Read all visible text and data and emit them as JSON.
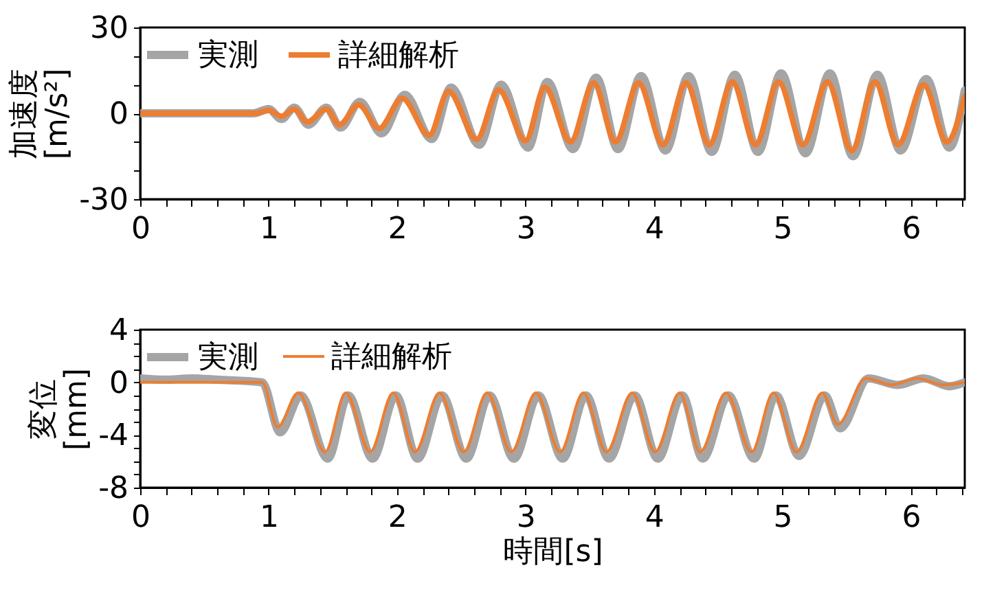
{
  "chart_data": [
    {
      "type": "line",
      "ylabel": "加速度\n[m/s²]",
      "xlim": [
        0,
        6.42
      ],
      "ylim": [
        -30,
        30
      ],
      "xticks": [
        0,
        {
          "value": 0.2,
          "label": null
        },
        {
          "value": 0.4,
          "label": null
        },
        {
          "value": 0.6,
          "label": null
        },
        {
          "value": 0.8,
          "label": null
        },
        1,
        {
          "value": 1.2,
          "label": null
        },
        {
          "value": 1.4,
          "label": null
        },
        {
          "value": 1.6,
          "label": null
        },
        {
          "value": 1.8,
          "label": null
        },
        2,
        {
          "value": 2.2,
          "label": null
        },
        {
          "value": 2.4,
          "label": null
        },
        {
          "value": 2.6,
          "label": null
        },
        {
          "value": 2.8,
          "label": null
        },
        3,
        {
          "value": 3.2,
          "label": null
        },
        {
          "value": 3.4,
          "label": null
        },
        {
          "value": 3.6,
          "label": null
        },
        {
          "value": 3.8,
          "label": null
        },
        4,
        {
          "value": 4.2,
          "label": null
        },
        {
          "value": 4.4,
          "label": null
        },
        {
          "value": 4.6,
          "label": null
        },
        {
          "value": 4.8,
          "label": null
        },
        5,
        {
          "value": 5.2,
          "label": null
        },
        {
          "value": 5.4,
          "label": null
        },
        {
          "value": 5.6,
          "label": null
        },
        {
          "value": 5.8,
          "label": null
        },
        6,
        {
          "value": 6.2,
          "label": null
        },
        {
          "value": 6.4,
          "label": null
        }
      ],
      "yticks": [
        -30,
        {
          "value": -20,
          "label": null
        },
        {
          "value": -10,
          "label": null
        },
        0,
        {
          "value": 10,
          "label": null
        },
        {
          "value": 20,
          "label": null
        },
        30
      ],
      "legend": "top left",
      "grid": false,
      "series": [
        {
          "name": "実測",
          "color": "#a5a5a5",
          "x": [
            0,
            0.88,
            1.0,
            1.1,
            1.2,
            1.31,
            1.45,
            1.56,
            1.71,
            1.88,
            2.06,
            2.27,
            2.42,
            2.64,
            2.81,
            3.02,
            3.17,
            3.37,
            3.55,
            3.72,
            3.9,
            4.09,
            4.27,
            4.45,
            4.63,
            4.81,
            4.99,
            5.18,
            5.37,
            5.55,
            5.74,
            5.92,
            6.12,
            6.3,
            6.42
          ],
          "values": [
            0,
            0,
            1.5,
            -2,
            2,
            -4,
            2,
            -5,
            4,
            -7,
            6.5,
            -9,
            9,
            -11,
            10,
            -12,
            11,
            -12.5,
            12.5,
            -12.5,
            13,
            -13,
            13,
            -13.5,
            13.5,
            -13.5,
            14,
            -14,
            14,
            -15,
            13.5,
            -13,
            12,
            -12,
            8
          ]
        },
        {
          "name": "詳細解析",
          "color": "#ed7d31",
          "x": [
            0,
            0.9,
            1.0,
            1.1,
            1.2,
            1.3,
            1.45,
            1.55,
            1.7,
            1.86,
            2.04,
            2.25,
            2.4,
            2.62,
            2.79,
            3.0,
            3.15,
            3.35,
            3.53,
            3.7,
            3.88,
            4.07,
            4.25,
            4.43,
            4.61,
            4.79,
            4.97,
            5.16,
            5.35,
            5.54,
            5.72,
            5.9,
            6.1,
            6.28,
            6.42
          ],
          "values": [
            0,
            0,
            1,
            -1,
            1.5,
            -3,
            1.5,
            -4,
            3,
            -5.3,
            5.3,
            -7.7,
            7.7,
            -9.1,
            8.2,
            -9.6,
            9.1,
            -10,
            10.6,
            -10,
            10.6,
            -11,
            10.6,
            -11,
            11,
            -11,
            11,
            -11,
            11,
            -13,
            11,
            -11,
            10,
            -10,
            6
          ]
        }
      ]
    },
    {
      "type": "line",
      "ylabel": "変位\n[mm]",
      "xlabel": "時間[s]",
      "xlim": [
        0,
        6.42
      ],
      "ylim": [
        -8,
        4
      ],
      "xticks": [
        0,
        {
          "value": 0.2,
          "label": null
        },
        {
          "value": 0.4,
          "label": null
        },
        {
          "value": 0.6,
          "label": null
        },
        {
          "value": 0.8,
          "label": null
        },
        1,
        {
          "value": 1.2,
          "label": null
        },
        {
          "value": 1.4,
          "label": null
        },
        {
          "value": 1.6,
          "label": null
        },
        {
          "value": 1.8,
          "label": null
        },
        2,
        {
          "value": 2.2,
          "label": null
        },
        {
          "value": 2.4,
          "label": null
        },
        {
          "value": 2.6,
          "label": null
        },
        {
          "value": 2.8,
          "label": null
        },
        3,
        {
          "value": 3.2,
          "label": null
        },
        {
          "value": 3.4,
          "label": null
        },
        {
          "value": 3.6,
          "label": null
        },
        {
          "value": 3.8,
          "label": null
        },
        4,
        {
          "value": 4.2,
          "label": null
        },
        {
          "value": 4.4,
          "label": null
        },
        {
          "value": 4.6,
          "label": null
        },
        {
          "value": 4.8,
          "label": null
        },
        5,
        {
          "value": 5.2,
          "label": null
        },
        {
          "value": 5.4,
          "label": null
        },
        {
          "value": 5.6,
          "label": null
        },
        {
          "value": 5.8,
          "label": null
        },
        6,
        {
          "value": 6.2,
          "label": null
        },
        {
          "value": 6.4,
          "label": null
        }
      ],
      "yticks": [
        -8,
        {
          "value": -7,
          "label": null
        },
        {
          "value": -6,
          "label": null
        },
        {
          "value": -5,
          "label": null
        },
        -4,
        {
          "value": -3,
          "label": null
        },
        {
          "value": -2,
          "label": null
        },
        {
          "value": -1,
          "label": null
        },
        0,
        {
          "value": 1,
          "label": null
        },
        {
          "value": 2,
          "label": null
        },
        {
          "value": 3,
          "label": null
        },
        4
      ],
      "legend": "top left",
      "grid": false,
      "series": [
        {
          "name": "実測",
          "color": "#a5a5a5",
          "x": [
            0,
            0.2,
            0.4,
            0.6,
            0.95,
            1.09,
            1.25,
            1.46,
            1.62,
            1.81,
            1.99,
            2.16,
            2.35,
            2.54,
            2.72,
            2.91,
            3.1,
            3.29,
            3.47,
            3.65,
            3.85,
            4.03,
            4.22,
            4.38,
            4.58,
            4.78,
            4.95,
            5.13,
            5.33,
            5.45,
            5.67,
            5.9,
            6.1,
            6.3,
            6.42
          ],
          "values": [
            0.3,
            0.2,
            0.3,
            0.2,
            0,
            -3.8,
            -1,
            -5.8,
            -1,
            -5.8,
            -1,
            -5.8,
            -1,
            -5.8,
            -1,
            -5.8,
            -1,
            -5.8,
            -1,
            -5.8,
            -1,
            -5.8,
            -1,
            -5.8,
            -1,
            -5.8,
            -1,
            -5.6,
            -1,
            -3.5,
            0.3,
            -0.2,
            0.3,
            -0.3,
            0
          ]
        },
        {
          "name": "詳細解析",
          "color": "#ed7d31",
          "x": [
            0,
            0.95,
            1.07,
            1.23,
            1.44,
            1.6,
            1.79,
            1.97,
            2.14,
            2.33,
            2.52,
            2.7,
            2.89,
            3.08,
            3.27,
            3.45,
            3.63,
            3.83,
            4.01,
            4.2,
            4.36,
            4.56,
            4.76,
            4.93,
            5.11,
            5.31,
            5.43,
            5.65,
            5.85,
            6.05,
            6.25,
            6.42
          ],
          "values": [
            0,
            0,
            -3.4,
            -0.8,
            -5.3,
            -0.8,
            -5.3,
            -0.8,
            -5.3,
            -0.8,
            -5.3,
            -0.8,
            -5.3,
            -0.8,
            -5.3,
            -0.8,
            -5.3,
            -0.8,
            -5.3,
            -0.8,
            -5.3,
            -0.8,
            -5.3,
            -0.8,
            -5.3,
            -0.8,
            -3.2,
            0.3,
            -0.2,
            0.3,
            -0.2,
            0
          ]
        }
      ]
    }
  ]
}
